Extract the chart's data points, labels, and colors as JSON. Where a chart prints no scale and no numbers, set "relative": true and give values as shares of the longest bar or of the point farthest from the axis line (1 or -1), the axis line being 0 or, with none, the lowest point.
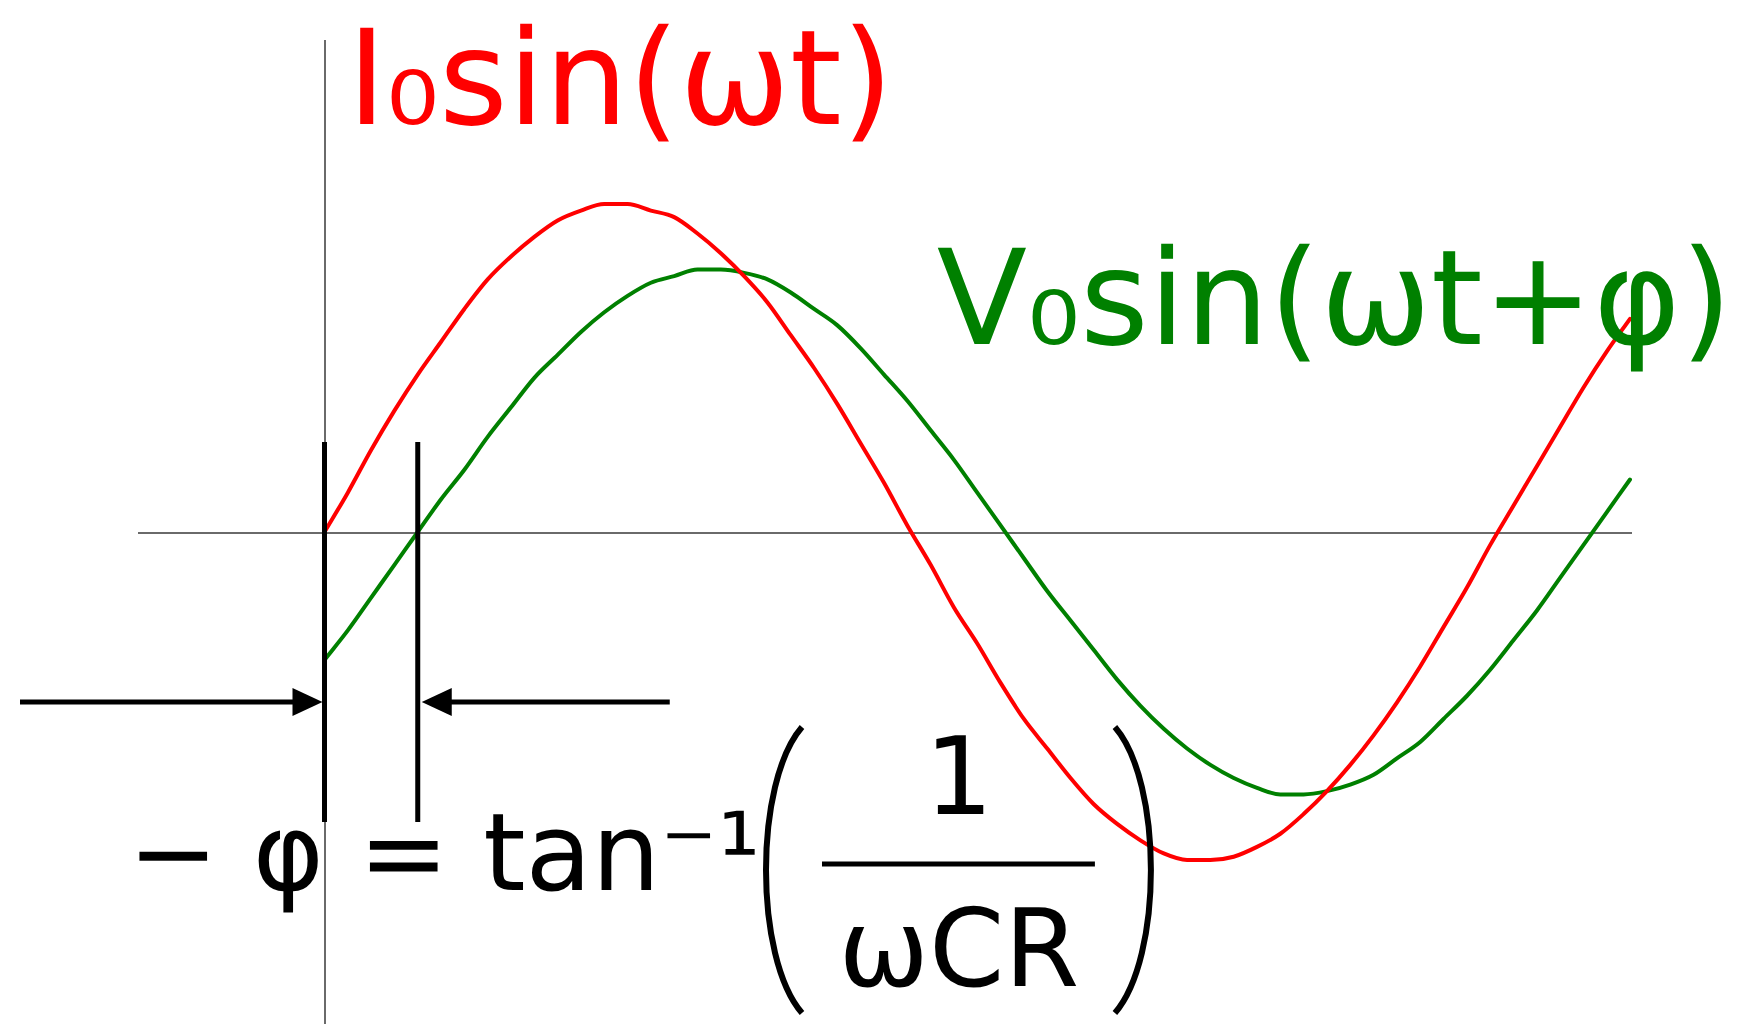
{
  "chart_data": {
    "type": "line",
    "relative": true,
    "marker": "none",
    "line_style": "solid",
    "categories": [
      null,
      null,
      null,
      null,
      null,
      null,
      null,
      null,
      null,
      null,
      null,
      null,
      null,
      null,
      null,
      null,
      null,
      null,
      null,
      null,
      null,
      null,
      null,
      null,
      null,
      null,
      null,
      null,
      null,
      null,
      null,
      null,
      null,
      null,
      null,
      null,
      null,
      null,
      null,
      null,
      null,
      null,
      null,
      null,
      null,
      null,
      null,
      null,
      null,
      null,
      null,
      null,
      null,
      null,
      null,
      null,
      null,
      null,
      null,
      null,
      null,
      null,
      null,
      null,
      null
    ],
    "series": [
      {
        "name": "I₀sin(ωt)",
        "color": "#ff0000",
        "values": [
          null,
          null,
          null,
          null,
          null,
          null,
          null,
          null,
          0,
          0.12,
          0.25,
          0.37,
          0.48,
          0.58,
          0.68,
          0.77,
          0.84,
          0.9,
          0.95,
          0.98,
          1,
          1,
          0.98,
          0.96,
          0.91,
          0.85,
          0.78,
          0.7,
          0.6,
          0.5,
          0.39,
          0.27,
          0.15,
          0.02,
          -0.1,
          -0.23,
          -0.34,
          -0.46,
          -0.57,
          -0.66,
          -0.75,
          -0.83,
          -0.89,
          -0.94,
          -0.98,
          -1,
          -1,
          -0.99,
          -0.96,
          -0.92,
          -0.86,
          -0.79,
          -0.71,
          -0.62,
          -0.52,
          -0.41,
          -0.29,
          -0.17,
          -0.04,
          0.08,
          0.2,
          0.32,
          0.44,
          0.55,
          0.65
        ]
      },
      {
        "name": "V₀sin(ωt+φ)",
        "color": "#008000",
        "values": [
          null,
          null,
          null,
          null,
          null,
          null,
          null,
          null,
          -0.39,
          -0.3,
          -0.2,
          -0.1,
          0,
          0.1,
          0.19,
          0.29,
          0.38,
          0.47,
          0.54,
          0.61,
          0.67,
          0.72,
          0.76,
          0.78,
          0.8,
          0.8,
          0.79,
          0.77,
          0.73,
          0.68,
          0.63,
          0.56,
          0.48,
          0.4,
          0.31,
          0.22,
          0.12,
          0.02,
          -0.08,
          -0.18,
          -0.27,
          -0.36,
          -0.45,
          -0.53,
          -0.6,
          -0.66,
          -0.71,
          -0.75,
          -0.78,
          -0.8,
          -0.8,
          -0.79,
          -0.77,
          -0.74,
          -0.69,
          -0.64,
          -0.57,
          -0.5,
          -0.42,
          -0.33,
          -0.24,
          -0.14,
          -0.04,
          0.06,
          0.16
        ]
      }
    ],
    "annotations": [
      "− φ = tan⁻¹",
      "1",
      "ωCR"
    ]
  }
}
